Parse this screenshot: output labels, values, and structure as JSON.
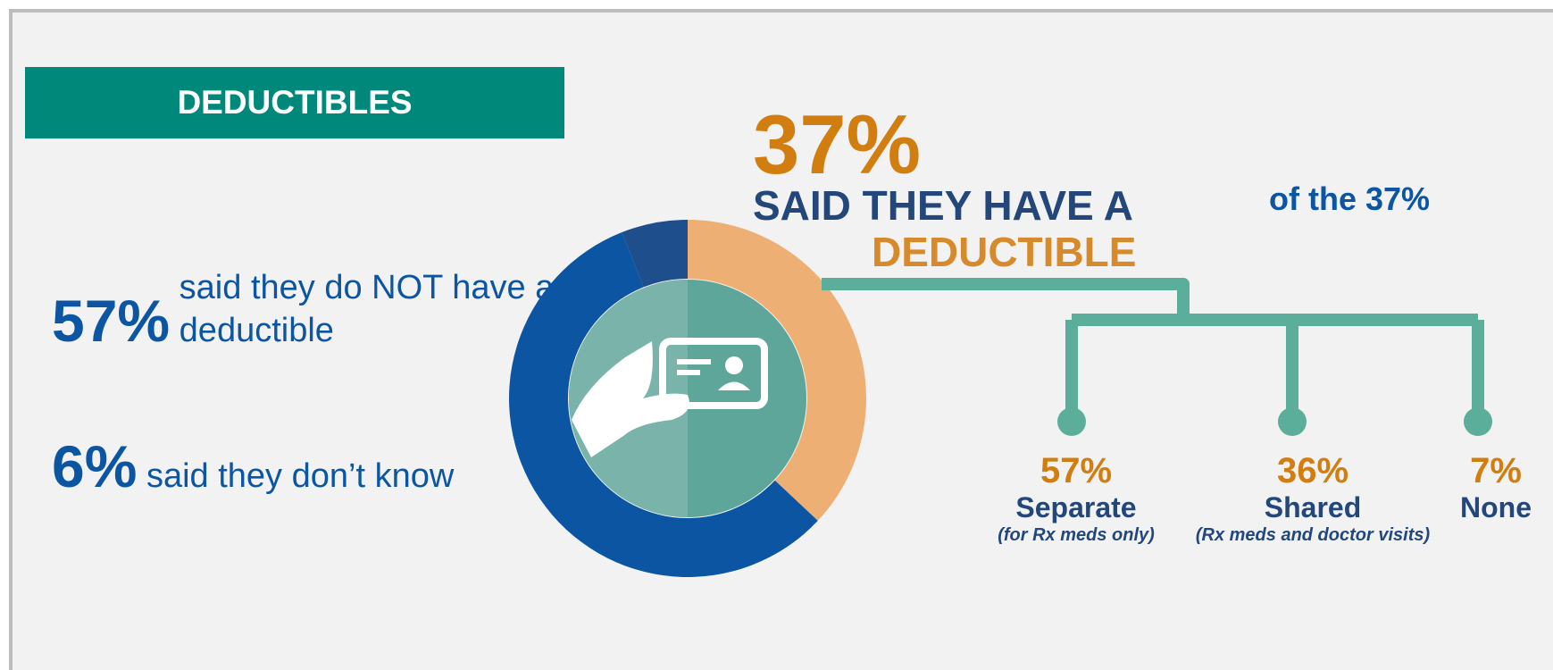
{
  "banner": {
    "title": "DEDUCTIBLES"
  },
  "left_stats": [
    {
      "value": "57%",
      "text": "said they do NOT have a deductible"
    },
    {
      "value": "6%",
      "text": "said they don’t know"
    }
  ],
  "headline": {
    "value": "37%",
    "line1": "SAID THEY HAVE A",
    "line2": "DEDUCTIBLE"
  },
  "branches_label": "of the 37%",
  "branches": [
    {
      "value": "57%",
      "name": "Separate",
      "note": "(for Rx meds only)"
    },
    {
      "value": "36%",
      "name": "Shared",
      "note": "(Rx meds and doctor visits)"
    },
    {
      "value": "7%",
      "name": "None",
      "note": ""
    }
  ],
  "icon": "hand-holding-id-card-icon",
  "colors": {
    "no_deductible": "#0b55a3",
    "has_deductible": "#edaf73",
    "dont_know": "#1f4e8c",
    "inner": "#5ea69a",
    "connector": "#5aae9a",
    "banner": "#00897b"
  },
  "chart_data": {
    "type": "pie",
    "style": "donut",
    "categories": [
      "Have a deductible",
      "Do NOT have a deductible",
      "Don’t know"
    ],
    "values": [
      37,
      57,
      6
    ],
    "sub_breakdown": {
      "of": "Have a deductible",
      "categories": [
        "Separate",
        "Shared",
        "None"
      ],
      "values": [
        57,
        36,
        7
      ]
    }
  }
}
